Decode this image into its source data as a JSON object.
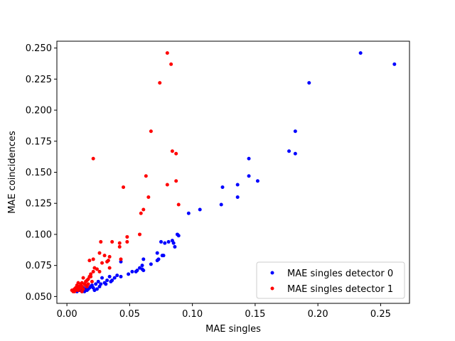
{
  "chart_data": {
    "type": "scatter",
    "title": "",
    "xlabel": "MAE singles",
    "ylabel": "MAE coincidences",
    "xlim": [
      -0.008,
      0.273
    ],
    "ylim": [
      0.0445,
      0.2555
    ],
    "x_ticks": [
      0.0,
      0.05,
      0.1,
      0.15,
      0.2,
      0.25
    ],
    "x_tick_labels": [
      "0.00",
      "0.05",
      "0.10",
      "0.15",
      "0.20",
      "0.25"
    ],
    "y_ticks": [
      0.05,
      0.075,
      0.1,
      0.125,
      0.15,
      0.175,
      0.2,
      0.225,
      0.25
    ],
    "y_tick_labels": [
      "0.050",
      "0.075",
      "0.100",
      "0.125",
      "0.150",
      "0.175",
      "0.200",
      "0.225",
      "0.250"
    ],
    "grid": false,
    "legend_position": "lower-right",
    "series": [
      {
        "name": "MAE singles detector 0",
        "color": "#0000ff",
        "points": [
          [
            0.234,
            0.246
          ],
          [
            0.261,
            0.237
          ],
          [
            0.193,
            0.222
          ],
          [
            0.182,
            0.183
          ],
          [
            0.177,
            0.167
          ],
          [
            0.182,
            0.165
          ],
          [
            0.145,
            0.161
          ],
          [
            0.145,
            0.147
          ],
          [
            0.152,
            0.143
          ],
          [
            0.136,
            0.14
          ],
          [
            0.124,
            0.138
          ],
          [
            0.136,
            0.13
          ],
          [
            0.123,
            0.124
          ],
          [
            0.106,
            0.12
          ],
          [
            0.097,
            0.117
          ],
          [
            0.089,
            0.099
          ],
          [
            0.088,
            0.1
          ],
          [
            0.085,
            0.093
          ],
          [
            0.084,
            0.095
          ],
          [
            0.081,
            0.094
          ],
          [
            0.078,
            0.093
          ],
          [
            0.075,
            0.094
          ],
          [
            0.086,
            0.09
          ],
          [
            0.072,
            0.085
          ],
          [
            0.076,
            0.083
          ],
          [
            0.077,
            0.083
          ],
          [
            0.073,
            0.08
          ],
          [
            0.072,
            0.079
          ],
          [
            0.061,
            0.08
          ],
          [
            0.067,
            0.076
          ],
          [
            0.06,
            0.075
          ],
          [
            0.058,
            0.073
          ],
          [
            0.06,
            0.072
          ],
          [
            0.061,
            0.071
          ],
          [
            0.056,
            0.071
          ],
          [
            0.055,
            0.07
          ],
          [
            0.052,
            0.07
          ],
          [
            0.049,
            0.068
          ],
          [
            0.043,
            0.066
          ],
          [
            0.04,
            0.067
          ],
          [
            0.043,
            0.078
          ],
          [
            0.038,
            0.065
          ],
          [
            0.034,
            0.066
          ],
          [
            0.032,
            0.063
          ],
          [
            0.028,
            0.065
          ],
          [
            0.03,
            0.061
          ],
          [
            0.035,
            0.062
          ],
          [
            0.036,
            0.063
          ],
          [
            0.025,
            0.062
          ],
          [
            0.027,
            0.06
          ],
          [
            0.023,
            0.06
          ],
          [
            0.02,
            0.059
          ],
          [
            0.018,
            0.057
          ],
          [
            0.021,
            0.057
          ],
          [
            0.024,
            0.056
          ],
          [
            0.022,
            0.055
          ],
          [
            0.016,
            0.055
          ],
          [
            0.014,
            0.054
          ],
          [
            0.012,
            0.054
          ],
          [
            0.015,
            0.056
          ],
          [
            0.019,
            0.058
          ],
          [
            0.013,
            0.057
          ],
          [
            0.011,
            0.056
          ],
          [
            0.009,
            0.055
          ],
          [
            0.008,
            0.054
          ],
          [
            0.007,
            0.056
          ],
          [
            0.006,
            0.055
          ],
          [
            0.005,
            0.055
          ],
          [
            0.01,
            0.055
          ],
          [
            0.017,
            0.056
          ],
          [
            0.026,
            0.058
          ],
          [
            0.031,
            0.06
          ]
        ]
      },
      {
        "name": "MAE singles detector 1",
        "color": "#ff0000",
        "points": [
          [
            0.08,
            0.246
          ],
          [
            0.083,
            0.237
          ],
          [
            0.074,
            0.222
          ],
          [
            0.067,
            0.183
          ],
          [
            0.021,
            0.161
          ],
          [
            0.084,
            0.167
          ],
          [
            0.087,
            0.165
          ],
          [
            0.063,
            0.147
          ],
          [
            0.087,
            0.143
          ],
          [
            0.08,
            0.14
          ],
          [
            0.045,
            0.138
          ],
          [
            0.065,
            0.13
          ],
          [
            0.089,
            0.124
          ],
          [
            0.061,
            0.12
          ],
          [
            0.059,
            0.117
          ],
          [
            0.048,
            0.098
          ],
          [
            0.058,
            0.1
          ],
          [
            0.036,
            0.094
          ],
          [
            0.027,
            0.094
          ],
          [
            0.042,
            0.093
          ],
          [
            0.048,
            0.094
          ],
          [
            0.042,
            0.09
          ],
          [
            0.026,
            0.085
          ],
          [
            0.03,
            0.083
          ],
          [
            0.034,
            0.082
          ],
          [
            0.043,
            0.08
          ],
          [
            0.033,
            0.079
          ],
          [
            0.032,
            0.078
          ],
          [
            0.021,
            0.08
          ],
          [
            0.018,
            0.079
          ],
          [
            0.028,
            0.077
          ],
          [
            0.034,
            0.073
          ],
          [
            0.022,
            0.073
          ],
          [
            0.024,
            0.072
          ],
          [
            0.021,
            0.07
          ],
          [
            0.026,
            0.07
          ],
          [
            0.019,
            0.068
          ],
          [
            0.018,
            0.066
          ],
          [
            0.019,
            0.066
          ],
          [
            0.017,
            0.064
          ],
          [
            0.013,
            0.065
          ],
          [
            0.016,
            0.063
          ],
          [
            0.015,
            0.062
          ],
          [
            0.02,
            0.062
          ],
          [
            0.012,
            0.061
          ],
          [
            0.014,
            0.06
          ],
          [
            0.009,
            0.061
          ],
          [
            0.011,
            0.06
          ],
          [
            0.008,
            0.059
          ],
          [
            0.01,
            0.058
          ],
          [
            0.012,
            0.058
          ],
          [
            0.015,
            0.059
          ],
          [
            0.009,
            0.057
          ],
          [
            0.007,
            0.057
          ],
          [
            0.008,
            0.056
          ],
          [
            0.006,
            0.056
          ],
          [
            0.005,
            0.055
          ],
          [
            0.006,
            0.054
          ],
          [
            0.007,
            0.055
          ],
          [
            0.01,
            0.056
          ],
          [
            0.011,
            0.057
          ],
          [
            0.013,
            0.056
          ],
          [
            0.005,
            0.054
          ],
          [
            0.004,
            0.055
          ],
          [
            0.009,
            0.055
          ],
          [
            0.012,
            0.054
          ],
          [
            0.016,
            0.058
          ],
          [
            0.017,
            0.06
          ]
        ]
      }
    ]
  }
}
